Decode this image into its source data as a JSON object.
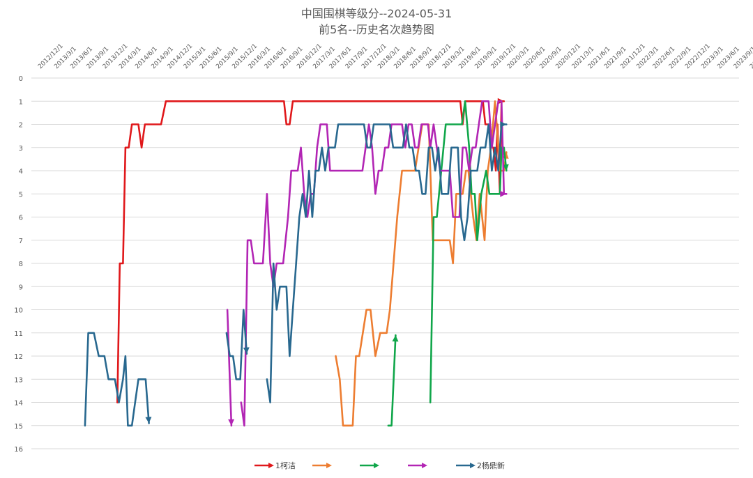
{
  "chart_data": {
    "type": "line",
    "title": "中国围棋等级分--2024-05-31",
    "subtitle": "前5名--历史名次趋势图",
    "xlabel": "",
    "ylabel": "",
    "ylim": [
      0,
      16
    ],
    "y_inverted": true,
    "y_ticks": [
      "0",
      "1",
      "2",
      "3",
      "4",
      "5",
      "6",
      "7",
      "8",
      "9",
      "10",
      "11",
      "12",
      "13",
      "14",
      "15",
      "16"
    ],
    "x_ticks": [
      "2012/12/1",
      "2013/3/1",
      "2013/6/1",
      "2013/9/1",
      "2013/12/1",
      "2014/3/1",
      "2014/6/1",
      "2014/9/1",
      "2014/12/1",
      "2015/3/1",
      "2015/6/1",
      "2015/9/1",
      "2015/12/1",
      "2016/3/1",
      "2016/6/1",
      "2016/9/1",
      "2016/12/1",
      "2017/3/1",
      "2017/6/1",
      "2017/9/1",
      "2017/12/1",
      "2018/3/1",
      "2018/6/1",
      "2018/9/1",
      "2018/12/1",
      "2019/3/1",
      "2019/6/1",
      "2019/9/1",
      "2019/12/1",
      "2020/3/1",
      "2020/6/1",
      "2020/9/1",
      "2020/12/1",
      "2021/3/1",
      "2021/6/1",
      "2021/9/1",
      "2021/12/1",
      "2022/3/1",
      "2022/6/1",
      "2022/9/1",
      "2022/12/1",
      "2023/3/1",
      "2023/6/1",
      "2023/9/1",
      "2023/12/1",
      "2024/3/1"
    ],
    "grid": true,
    "legend_position": "bottom",
    "series": [
      {
        "name": "1柯洁",
        "color": "#e0181b",
        "segments": [
          [
            [
              5.1,
              14
            ],
            [
              5.25,
              8
            ],
            [
              5.45,
              8
            ],
            [
              5.6,
              3
            ],
            [
              5.8,
              3
            ],
            [
              6.0,
              2
            ],
            [
              6.4,
              2
            ],
            [
              6.6,
              3
            ],
            [
              6.8,
              2
            ],
            [
              7.8,
              2
            ],
            [
              8.1,
              1
            ],
            [
              15.4,
              1
            ],
            [
              15.55,
              2
            ],
            [
              15.75,
              2
            ],
            [
              15.95,
              1
            ],
            [
              26.3,
              1
            ],
            [
              26.45,
              2
            ],
            [
              26.6,
              1
            ],
            [
              27.7,
              1
            ],
            [
              27.85,
              2
            ],
            [
              28.1,
              2
            ],
            [
              28.2,
              3
            ],
            [
              28.35,
              3
            ],
            [
              28.5,
              4
            ],
            [
              28.6,
              2
            ],
            [
              28.75,
              5
            ],
            [
              28.85,
              1
            ],
            [
              29.0,
              1
            ]
          ]
        ]
      },
      {
        "name": "",
        "color": "#ed7d31",
        "segments": [
          [
            [
              18.6,
              12
            ],
            [
              18.85,
              13
            ],
            [
              19.05,
              15
            ],
            [
              19.65,
              15
            ],
            [
              19.85,
              12
            ],
            [
              20.05,
              12
            ],
            [
              20.5,
              10
            ],
            [
              20.75,
              10
            ],
            [
              21.05,
              12
            ],
            [
              21.35,
              11
            ],
            [
              21.75,
              11
            ],
            [
              21.95,
              10
            ],
            [
              22.4,
              6
            ],
            [
              22.7,
              4
            ],
            [
              23.5,
              4
            ],
            [
              23.95,
              2
            ],
            [
              24.35,
              2
            ],
            [
              24.6,
              7
            ],
            [
              25.65,
              7
            ],
            [
              25.85,
              8
            ],
            [
              26.05,
              5
            ],
            [
              26.45,
              5
            ],
            [
              26.65,
              4
            ],
            [
              26.8,
              4
            ],
            [
              27.1,
              6
            ],
            [
              27.3,
              7
            ],
            [
              27.5,
              5
            ],
            [
              27.8,
              7
            ],
            [
              28.0,
              4
            ],
            [
              28.2,
              3
            ],
            [
              28.45,
              1
            ],
            [
              28.65,
              3
            ],
            [
              28.75,
              4
            ],
            [
              29.0,
              4
            ],
            [
              29.15,
              3.2
            ]
          ]
        ]
      },
      {
        "name": "",
        "color": "#10a64a",
        "segments": [
          [
            [
              21.85,
              15
            ],
            [
              22.05,
              15
            ],
            [
              22.3,
              11.1
            ]
          ],
          [
            [
              24.45,
              14
            ],
            [
              24.65,
              6
            ],
            [
              24.85,
              6
            ],
            [
              25.4,
              2
            ],
            [
              26.4,
              2
            ],
            [
              26.6,
              1
            ],
            [
              26.85,
              3
            ],
            [
              27.0,
              5
            ],
            [
              27.2,
              5
            ],
            [
              27.35,
              7
            ],
            [
              27.6,
              5
            ],
            [
              27.9,
              4
            ],
            [
              28.1,
              5
            ],
            [
              28.5,
              5
            ],
            [
              28.75,
              5
            ],
            [
              28.85,
              3
            ],
            [
              29.0,
              3
            ],
            [
              29.15,
              4
            ]
          ]
        ]
      },
      {
        "name": "",
        "color": "#b225b4",
        "segments": [
          [
            [
              11.9,
              10
            ],
            [
              12.15,
              15
            ]
          ],
          [
            [
              12.75,
              14
            ],
            [
              12.95,
              15
            ],
            [
              13.15,
              7
            ],
            [
              13.35,
              7
            ],
            [
              13.55,
              8
            ],
            [
              14.1,
              8
            ],
            [
              14.35,
              5
            ],
            [
              14.55,
              8
            ],
            [
              14.75,
              9
            ],
            [
              14.95,
              8
            ],
            [
              15.35,
              8
            ],
            [
              15.65,
              6
            ],
            [
              15.85,
              4
            ],
            [
              16.25,
              4
            ],
            [
              16.45,
              3
            ],
            [
              16.65,
              5
            ],
            [
              16.85,
              6
            ],
            [
              17.05,
              5
            ],
            [
              17.25,
              5
            ],
            [
              17.45,
              3
            ],
            [
              17.65,
              2
            ],
            [
              18.05,
              2
            ],
            [
              18.25,
              4
            ],
            [
              20.25,
              4
            ],
            [
              20.45,
              3
            ],
            [
              20.65,
              2
            ],
            [
              20.85,
              3
            ],
            [
              21.05,
              5
            ],
            [
              21.25,
              4
            ],
            [
              21.45,
              4
            ],
            [
              21.65,
              3
            ],
            [
              21.85,
              3
            ],
            [
              22.05,
              2
            ],
            [
              22.7,
              2
            ],
            [
              22.9,
              3
            ],
            [
              23.1,
              2
            ],
            [
              23.3,
              2
            ],
            [
              23.5,
              3
            ],
            [
              23.7,
              3
            ],
            [
              23.9,
              2
            ],
            [
              24.3,
              2
            ],
            [
              24.45,
              3
            ],
            [
              24.65,
              2
            ],
            [
              24.85,
              3
            ],
            [
              25.05,
              4
            ],
            [
              25.25,
              4
            ],
            [
              25.65,
              4
            ],
            [
              25.85,
              6
            ],
            [
              26.25,
              6
            ],
            [
              26.45,
              3
            ],
            [
              26.65,
              3
            ],
            [
              26.85,
              4
            ],
            [
              27.05,
              3
            ],
            [
              27.25,
              3
            ],
            [
              27.45,
              2
            ],
            [
              27.65,
              1
            ],
            [
              28.05,
              1
            ],
            [
              28.25,
              3
            ],
            [
              28.45,
              2
            ],
            [
              28.65,
              1
            ],
            [
              28.85,
              1
            ],
            [
              29.0,
              5
            ],
            [
              29.15,
              5
            ]
          ]
        ]
      },
      {
        "name": "2杨鼎新",
        "color": "#28688f",
        "segments": [
          [
            [
              3.1,
              15
            ],
            [
              3.3,
              11
            ],
            [
              3.65,
              11
            ],
            [
              3.95,
              12
            ],
            [
              4.3,
              12
            ],
            [
              4.55,
              13
            ],
            [
              4.95,
              13
            ],
            [
              5.2,
              14
            ],
            [
              5.45,
              13
            ],
            [
              5.6,
              12
            ],
            [
              5.75,
              15
            ],
            [
              6.0,
              15
            ],
            [
              6.2,
              14
            ],
            [
              6.4,
              13
            ],
            [
              6.85,
              13
            ],
            [
              7.05,
              14.9
            ]
          ],
          [
            [
              11.85,
              11
            ],
            [
              12.05,
              12
            ],
            [
              12.25,
              12
            ],
            [
              12.45,
              13
            ],
            [
              12.7,
              13
            ],
            [
              12.9,
              10
            ],
            [
              13.1,
              11.9
            ]
          ],
          [
            [
              14.35,
              13
            ],
            [
              14.55,
              14
            ],
            [
              14.75,
              8
            ],
            [
              14.95,
              10
            ],
            [
              15.15,
              9
            ],
            [
              15.55,
              9
            ],
            [
              15.75,
              12
            ],
            [
              15.95,
              10
            ],
            [
              16.15,
              8
            ],
            [
              16.35,
              6
            ],
            [
              16.55,
              5
            ],
            [
              16.75,
              6
            ],
            [
              16.95,
              4
            ],
            [
              17.15,
              6
            ],
            [
              17.35,
              4
            ],
            [
              17.55,
              4
            ],
            [
              17.75,
              3
            ],
            [
              17.95,
              4
            ],
            [
              18.15,
              3
            ],
            [
              18.55,
              3
            ],
            [
              18.75,
              2
            ],
            [
              20.35,
              2
            ],
            [
              20.55,
              3
            ],
            [
              20.75,
              3
            ],
            [
              20.95,
              2
            ],
            [
              21.95,
              2
            ],
            [
              22.15,
              3
            ],
            [
              22.75,
              3
            ],
            [
              22.95,
              2
            ],
            [
              23.15,
              3
            ],
            [
              23.35,
              3
            ],
            [
              23.55,
              4
            ],
            [
              23.75,
              4
            ],
            [
              23.95,
              5
            ],
            [
              24.15,
              5
            ],
            [
              24.35,
              3
            ],
            [
              24.55,
              3
            ],
            [
              24.75,
              4
            ],
            [
              24.95,
              3
            ],
            [
              25.15,
              5
            ],
            [
              25.55,
              5
            ],
            [
              25.75,
              3
            ],
            [
              26.15,
              3
            ],
            [
              26.35,
              6
            ],
            [
              26.55,
              7
            ],
            [
              26.75,
              6
            ],
            [
              26.95,
              4
            ],
            [
              27.35,
              4
            ],
            [
              27.55,
              3
            ],
            [
              27.85,
              3
            ],
            [
              28.05,
              2
            ],
            [
              28.25,
              4
            ],
            [
              28.45,
              3
            ],
            [
              28.65,
              4
            ],
            [
              28.85,
              2
            ],
            [
              29.15,
              2
            ]
          ]
        ]
      }
    ]
  }
}
